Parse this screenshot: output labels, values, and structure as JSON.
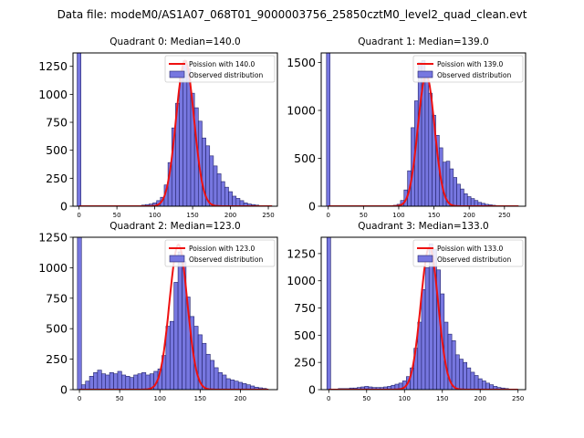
{
  "figure": {
    "suptitle": "Data file: modeM0/AS1A07_068T01_9000003756_25850cztM0_level2_quad_clean.evt"
  },
  "colors": {
    "bar_fill": "#7777e0",
    "bar_edge": "#22226a",
    "poisson": "#ee1111",
    "background": "#ffffff"
  },
  "chart_data": [
    {
      "type": "bar",
      "title": "Quadrant 0: Median=140.0",
      "xlim": [
        -8,
        262
      ],
      "ylim": [
        0,
        1370
      ],
      "xticks": [
        0,
        50,
        100,
        150,
        200,
        250
      ],
      "yticks": [
        0,
        250,
        500,
        750,
        1000,
        1250
      ],
      "bin_width": 5,
      "spike": {
        "x": 0,
        "value": 1370
      },
      "bins_x": [
        80,
        85,
        90,
        95,
        100,
        105,
        110,
        115,
        120,
        125,
        130,
        135,
        140,
        145,
        150,
        155,
        160,
        165,
        170,
        175,
        180,
        185,
        190,
        195,
        200,
        205,
        210,
        215,
        220,
        225,
        230,
        235,
        240
      ],
      "bins_y": [
        5,
        10,
        15,
        20,
        30,
        50,
        80,
        190,
        390,
        700,
        920,
        1150,
        1300,
        1230,
        1010,
        880,
        760,
        610,
        540,
        450,
        360,
        290,
        220,
        170,
        130,
        90,
        70,
        50,
        30,
        20,
        15,
        10,
        5
      ],
      "poisson_mean": 140.0,
      "poisson_peak": 1300,
      "poisson_range": [
        0,
        255
      ],
      "legend": [
        "Poission with 140.0",
        "Observed distribution"
      ]
    },
    {
      "type": "bar",
      "title": "Quadrant 1: Median=139.0",
      "xlim": [
        -10,
        280
      ],
      "ylim": [
        0,
        1600
      ],
      "xticks": [
        0,
        50,
        100,
        150,
        200,
        250
      ],
      "yticks": [
        0,
        500,
        1000,
        1500
      ],
      "bin_width": 5,
      "spike": {
        "x": 0,
        "value": 1600
      },
      "bins_x": [
        95,
        100,
        105,
        110,
        115,
        120,
        125,
        130,
        135,
        140,
        145,
        150,
        155,
        160,
        165,
        170,
        175,
        180,
        185,
        190,
        195,
        200,
        205,
        210,
        215,
        220,
        225,
        230,
        235
      ],
      "bins_y": [
        10,
        20,
        60,
        170,
        370,
        820,
        1100,
        1500,
        1520,
        1400,
        1180,
        950,
        740,
        610,
        460,
        470,
        390,
        300,
        230,
        180,
        130,
        100,
        80,
        60,
        40,
        30,
        20,
        15,
        10
      ],
      "poisson_mean": 139.0,
      "poisson_peak": 1370,
      "poisson_range": [
        0,
        270
      ],
      "legend": [
        "Poission with 139.0",
        "Observed distribution"
      ]
    },
    {
      "type": "bar",
      "title": "Quadrant 2: Median=123.0",
      "xlim": [
        -8,
        246
      ],
      "ylim": [
        0,
        1250
      ],
      "xticks": [
        0,
        50,
        100,
        150,
        200
      ],
      "yticks": [
        0,
        250,
        500,
        750,
        1000,
        1250
      ],
      "bin_width": 5,
      "spike": {
        "x": 0,
        "value": 1250
      },
      "bins_x": [
        5,
        10,
        15,
        20,
        25,
        30,
        35,
        40,
        45,
        50,
        55,
        60,
        65,
        70,
        75,
        80,
        85,
        90,
        95,
        100,
        105,
        110,
        115,
        120,
        125,
        130,
        135,
        140,
        145,
        150,
        155,
        160,
        165,
        170,
        175,
        180,
        185,
        190,
        195,
        200,
        205,
        210,
        215,
        220,
        225,
        230
      ],
      "bins_y": [
        40,
        70,
        110,
        140,
        160,
        130,
        120,
        140,
        130,
        150,
        120,
        110,
        100,
        120,
        130,
        140,
        120,
        130,
        150,
        170,
        280,
        520,
        560,
        880,
        1130,
        1050,
        760,
        600,
        520,
        450,
        380,
        290,
        240,
        180,
        140,
        120,
        90,
        80,
        70,
        60,
        50,
        40,
        30,
        20,
        15,
        10
      ],
      "poisson_mean": 123.0,
      "poisson_peak": 1190,
      "poisson_range": [
        0,
        235
      ],
      "legend": [
        "Poission with 123.0",
        "Observed distribution"
      ]
    },
    {
      "type": "bar",
      "title": "Quadrant 3: Median=133.0",
      "xlim": [
        -10,
        260
      ],
      "ylim": [
        0,
        1400
      ],
      "xticks": [
        0,
        50,
        100,
        150,
        200,
        250
      ],
      "yticks": [
        0,
        250,
        500,
        750,
        1000,
        1250
      ],
      "bin_width": 5,
      "spike": {
        "x": 0,
        "value": 1400
      },
      "bins_x": [
        15,
        20,
        25,
        30,
        35,
        40,
        45,
        50,
        55,
        60,
        65,
        70,
        75,
        80,
        85,
        90,
        95,
        100,
        105,
        110,
        115,
        120,
        125,
        130,
        135,
        140,
        145,
        150,
        155,
        160,
        165,
        170,
        175,
        180,
        185,
        190,
        195,
        200,
        205,
        210,
        215,
        220,
        225,
        230,
        235,
        240
      ],
      "bins_y": [
        10,
        10,
        10,
        15,
        15,
        20,
        25,
        30,
        25,
        20,
        20,
        20,
        25,
        30,
        40,
        50,
        60,
        80,
        120,
        200,
        380,
        620,
        920,
        1120,
        1340,
        1290,
        1100,
        880,
        620,
        510,
        450,
        320,
        280,
        250,
        200,
        160,
        130,
        100,
        80,
        60,
        45,
        30,
        20,
        15,
        10,
        5
      ],
      "poisson_mean": 133.0,
      "poisson_peak": 1310,
      "poisson_range": [
        0,
        250
      ],
      "legend": [
        "Poission with 133.0",
        "Observed distribution"
      ]
    }
  ]
}
